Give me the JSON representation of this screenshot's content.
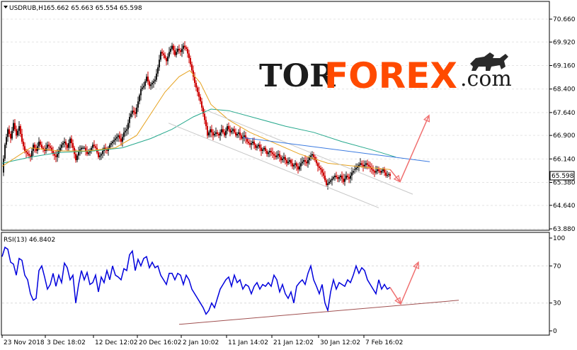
{
  "header": {
    "symbol": "USDRUB,H1",
    "ohlc": "65.662 65.663 65.554 65.598"
  },
  "rsi_header": "RSI(13) 46.8402",
  "logo": {
    "part1": "TOR",
    "part2": "FOREX",
    "part3": ".com"
  },
  "colors": {
    "up": "#1a1a1a",
    "down": "#cc0000",
    "ma_fast": "#e6a21e",
    "ma_slow": "#25a88c",
    "rsi": "#0000dd",
    "trend": "#c8c8c8",
    "resistance": "#3a7ae0",
    "arrow": "#f07070",
    "support": "#a05050",
    "logo_accent": "#ff4a00"
  },
  "chart_data": [
    {
      "type": "candlestick",
      "symbol": "USDRUB",
      "timeframe": "H1",
      "ylim": [
        63.88,
        70.66
      ],
      "price_ticks": [
        "70.660",
        "69.920",
        "69.160",
        "68.400",
        "67.640",
        "66.900",
        "66.140",
        "65.380",
        "64.640",
        "63.880"
      ],
      "current_price": "65.598",
      "x_labels": [
        "23 Nov 2018",
        "3 Dec 18:02",
        "12 Dec 12:02",
        "20 Dec 16:02",
        "2 Jan 10:02",
        "11 Jan 14:02",
        "21 Jan 12:02",
        "30 Jan 12:02",
        "7 Feb 16:02"
      ],
      "close_path": [
        [
          0,
          65.7
        ],
        [
          4,
          66.6
        ],
        [
          8,
          67.1
        ],
        [
          12,
          66.8
        ],
        [
          16,
          67.3
        ],
        [
          20,
          66.9
        ],
        [
          24,
          67.2
        ],
        [
          28,
          66.7
        ],
        [
          32,
          66.4
        ],
        [
          36,
          66.3
        ],
        [
          40,
          66.2
        ],
        [
          44,
          66.6
        ],
        [
          48,
          66.4
        ],
        [
          52,
          66.7
        ],
        [
          56,
          66.5
        ],
        [
          60,
          66.4
        ],
        [
          64,
          66.6
        ],
        [
          68,
          66.5
        ],
        [
          72,
          66.3
        ],
        [
          76,
          66.2
        ],
        [
          80,
          66.4
        ],
        [
          84,
          66.6
        ],
        [
          88,
          66.7
        ],
        [
          92,
          66.5
        ],
        [
          96,
          66.8
        ],
        [
          100,
          66.5
        ],
        [
          104,
          66.1
        ],
        [
          108,
          66.4
        ],
        [
          112,
          66.5
        ],
        [
          116,
          66.5
        ],
        [
          120,
          66.3
        ],
        [
          124,
          66.4
        ],
        [
          128,
          66.6
        ],
        [
          132,
          66.5
        ],
        [
          136,
          66.2
        ],
        [
          140,
          66.3
        ],
        [
          144,
          66.5
        ],
        [
          148,
          66.4
        ],
        [
          152,
          66.6
        ],
        [
          156,
          66.7
        ],
        [
          160,
          66.8
        ],
        [
          164,
          66.9
        ],
        [
          168,
          66.7
        ],
        [
          172,
          67.0
        ],
        [
          176,
          67.1
        ],
        [
          180,
          67.5
        ],
        [
          184,
          67.7
        ],
        [
          188,
          67.6
        ],
        [
          192,
          68.0
        ],
        [
          196,
          68.4
        ],
        [
          200,
          68.5
        ],
        [
          204,
          68.8
        ],
        [
          208,
          68.5
        ],
        [
          212,
          68.6
        ],
        [
          216,
          68.7
        ],
        [
          220,
          69.1
        ],
        [
          224,
          69.6
        ],
        [
          228,
          69.5
        ],
        [
          232,
          69.3
        ],
        [
          236,
          69.6
        ],
        [
          240,
          69.8
        ],
        [
          244,
          69.5
        ],
        [
          248,
          69.7
        ],
        [
          252,
          69.6
        ],
        [
          256,
          69.8
        ],
        [
          260,
          69.7
        ],
        [
          264,
          69.4
        ],
        [
          268,
          69.0
        ],
        [
          272,
          68.6
        ],
        [
          276,
          68.3
        ],
        [
          280,
          68.0
        ],
        [
          284,
          67.6
        ],
        [
          288,
          67.2
        ],
        [
          290,
          66.9
        ],
        [
          294,
          67.1
        ],
        [
          298,
          66.9
        ],
        [
          302,
          67.0
        ],
        [
          306,
          66.9
        ],
        [
          310,
          67.1
        ],
        [
          314,
          66.9
        ],
        [
          318,
          67.2
        ],
        [
          322,
          67.0
        ],
        [
          326,
          67.1
        ],
        [
          330,
          66.9
        ],
        [
          334,
          67.0
        ],
        [
          338,
          66.8
        ],
        [
          342,
          66.9
        ],
        [
          346,
          66.7
        ],
        [
          350,
          66.6
        ],
        [
          354,
          66.7
        ],
        [
          358,
          66.5
        ],
        [
          362,
          66.6
        ],
        [
          366,
          66.4
        ],
        [
          370,
          66.5
        ],
        [
          374,
          66.3
        ],
        [
          378,
          66.4
        ],
        [
          382,
          66.3
        ],
        [
          386,
          66.2
        ],
        [
          390,
          66.3
        ],
        [
          394,
          66.1
        ],
        [
          398,
          66.2
        ],
        [
          402,
          66.0
        ],
        [
          406,
          66.1
        ],
        [
          410,
          65.9
        ],
        [
          414,
          66.0
        ],
        [
          418,
          65.8
        ],
        [
          422,
          66.0
        ],
        [
          426,
          66.1
        ],
        [
          430,
          66.0
        ],
        [
          434,
          66.2
        ],
        [
          438,
          66.3
        ],
        [
          442,
          66.1
        ],
        [
          446,
          65.9
        ],
        [
          450,
          65.8
        ],
        [
          454,
          65.6
        ],
        [
          458,
          65.3
        ],
        [
          462,
          65.4
        ],
        [
          466,
          65.5
        ],
        [
          470,
          65.6
        ],
        [
          474,
          65.5
        ],
        [
          478,
          65.6
        ],
        [
          482,
          65.4
        ],
        [
          486,
          65.6
        ],
        [
          490,
          65.5
        ],
        [
          494,
          65.7
        ],
        [
          498,
          65.8
        ],
        [
          502,
          65.9
        ],
        [
          506,
          66.0
        ],
        [
          510,
          65.9
        ],
        [
          514,
          66.0
        ],
        [
          518,
          65.9
        ],
        [
          522,
          65.8
        ],
        [
          526,
          65.7
        ],
        [
          530,
          65.8
        ],
        [
          534,
          65.7
        ],
        [
          538,
          65.8
        ],
        [
          542,
          65.6
        ],
        [
          546,
          65.65
        ],
        [
          548,
          65.598
        ]
      ],
      "ma_fast": [
        [
          0,
          65.9
        ],
        [
          40,
          66.5
        ],
        [
          80,
          66.4
        ],
        [
          120,
          66.4
        ],
        [
          160,
          66.5
        ],
        [
          190,
          66.9
        ],
        [
          210,
          67.6
        ],
        [
          230,
          68.3
        ],
        [
          250,
          68.8
        ],
        [
          265,
          69.0
        ],
        [
          280,
          68.6
        ],
        [
          295,
          67.9
        ],
        [
          320,
          67.4
        ],
        [
          350,
          67.0
        ],
        [
          380,
          66.7
        ],
        [
          420,
          66.3
        ],
        [
          460,
          66.0
        ],
        [
          500,
          65.9
        ],
        [
          548,
          65.8
        ]
      ],
      "ma_slow": [
        [
          0,
          66.0
        ],
        [
          40,
          66.2
        ],
        [
          80,
          66.35
        ],
        [
          130,
          66.4
        ],
        [
          170,
          66.5
        ],
        [
          210,
          66.8
        ],
        [
          240,
          67.1
        ],
        [
          270,
          67.5
        ],
        [
          295,
          67.75
        ],
        [
          320,
          67.7
        ],
        [
          360,
          67.45
        ],
        [
          400,
          67.2
        ],
        [
          440,
          67.0
        ],
        [
          480,
          66.7
        ],
        [
          520,
          66.45
        ],
        [
          556,
          66.2
        ]
      ],
      "annotations": {
        "lower_channel": [
          [
            235,
            67.3
          ],
          [
            532,
            64.56
          ]
        ],
        "upper_channel": [
          [
            290,
            67.7
          ],
          [
            580,
            65.0
          ]
        ],
        "resistance": [
          [
            340,
            66.83
          ],
          [
            604,
            66.05
          ]
        ],
        "arrow_down": [
          [
            548,
            65.8
          ],
          [
            562,
            65.4
          ]
        ],
        "arrow_up": [
          [
            562,
            65.4
          ],
          [
            603,
            67.55
          ]
        ]
      }
    },
    {
      "type": "line",
      "name": "RSI(13)",
      "ylim": [
        0,
        100
      ],
      "ticks": [
        "100",
        "70",
        "30",
        "0"
      ],
      "last_value": "46.8402",
      "path": [
        [
          0,
          80
        ],
        [
          4,
          90
        ],
        [
          8,
          88
        ],
        [
          12,
          74
        ],
        [
          16,
          72
        ],
        [
          20,
          60
        ],
        [
          24,
          78
        ],
        [
          28,
          76
        ],
        [
          32,
          60
        ],
        [
          36,
          55
        ],
        [
          40,
          40
        ],
        [
          44,
          33
        ],
        [
          48,
          35
        ],
        [
          52,
          65
        ],
        [
          56,
          70
        ],
        [
          60,
          58
        ],
        [
          64,
          45
        ],
        [
          68,
          50
        ],
        [
          72,
          62
        ],
        [
          76,
          48
        ],
        [
          80,
          60
        ],
        [
          84,
          52
        ],
        [
          88,
          73
        ],
        [
          92,
          68
        ],
        [
          96,
          55
        ],
        [
          100,
          60
        ],
        [
          104,
          30
        ],
        [
          108,
          50
        ],
        [
          112,
          65
        ],
        [
          116,
          55
        ],
        [
          120,
          63
        ],
        [
          124,
          50
        ],
        [
          128,
          52
        ],
        [
          132,
          60
        ],
        [
          136,
          42
        ],
        [
          140,
          58
        ],
        [
          144,
          52
        ],
        [
          148,
          65
        ],
        [
          152,
          55
        ],
        [
          156,
          70
        ],
        [
          160,
          60
        ],
        [
          164,
          58
        ],
        [
          168,
          55
        ],
        [
          172,
          67
        ],
        [
          176,
          65
        ],
        [
          180,
          82
        ],
        [
          184,
          86
        ],
        [
          188,
          65
        ],
        [
          192,
          77
        ],
        [
          196,
          70
        ],
        [
          200,
          78
        ],
        [
          204,
          80
        ],
        [
          208,
          68
        ],
        [
          212,
          74
        ],
        [
          216,
          68
        ],
        [
          220,
          70
        ],
        [
          224,
          60
        ],
        [
          228,
          55
        ],
        [
          232,
          50
        ],
        [
          236,
          62
        ],
        [
          240,
          62
        ],
        [
          244,
          55
        ],
        [
          248,
          62
        ],
        [
          252,
          60
        ],
        [
          256,
          50
        ],
        [
          260,
          60
        ],
        [
          264,
          55
        ],
        [
          268,
          45
        ],
        [
          272,
          40
        ],
        [
          276,
          35
        ],
        [
          280,
          30
        ],
        [
          284,
          25
        ],
        [
          288,
          18
        ],
        [
          292,
          22
        ],
        [
          296,
          30
        ],
        [
          300,
          25
        ],
        [
          304,
          35
        ],
        [
          308,
          45
        ],
        [
          312,
          50
        ],
        [
          316,
          55
        ],
        [
          320,
          58
        ],
        [
          324,
          48
        ],
        [
          328,
          60
        ],
        [
          332,
          52
        ],
        [
          336,
          55
        ],
        [
          340,
          45
        ],
        [
          344,
          50
        ],
        [
          348,
          48
        ],
        [
          352,
          40
        ],
        [
          356,
          48
        ],
        [
          360,
          52
        ],
        [
          364,
          45
        ],
        [
          368,
          50
        ],
        [
          372,
          48
        ],
        [
          376,
          52
        ],
        [
          380,
          48
        ],
        [
          384,
          60
        ],
        [
          388,
          55
        ],
        [
          392,
          42
        ],
        [
          396,
          50
        ],
        [
          400,
          40
        ],
        [
          404,
          35
        ],
        [
          408,
          42
        ],
        [
          412,
          30
        ],
        [
          416,
          48
        ],
        [
          420,
          52
        ],
        [
          424,
          55
        ],
        [
          428,
          50
        ],
        [
          432,
          62
        ],
        [
          436,
          70
        ],
        [
          440,
          55
        ],
        [
          444,
          48
        ],
        [
          448,
          40
        ],
        [
          452,
          50
        ],
        [
          456,
          30
        ],
        [
          460,
          22
        ],
        [
          464,
          42
        ],
        [
          468,
          55
        ],
        [
          472,
          45
        ],
        [
          476,
          52
        ],
        [
          480,
          50
        ],
        [
          484,
          48
        ],
        [
          488,
          55
        ],
        [
          492,
          52
        ],
        [
          496,
          60
        ],
        [
          500,
          70
        ],
        [
          504,
          62
        ],
        [
          508,
          68
        ],
        [
          512,
          65
        ],
        [
          516,
          55
        ],
        [
          520,
          50
        ],
        [
          524,
          45
        ],
        [
          528,
          40
        ],
        [
          532,
          55
        ],
        [
          536,
          45
        ],
        [
          540,
          50
        ],
        [
          544,
          45
        ],
        [
          548,
          46.84
        ]
      ],
      "annotations": {
        "support": [
          [
            250,
            7
          ],
          [
            645,
            33
          ]
        ],
        "arrow_down": [
          [
            548,
            46.8
          ],
          [
            563,
            29
          ]
        ],
        "arrow_up": [
          [
            563,
            29
          ],
          [
            588,
            74
          ]
        ]
      }
    }
  ]
}
